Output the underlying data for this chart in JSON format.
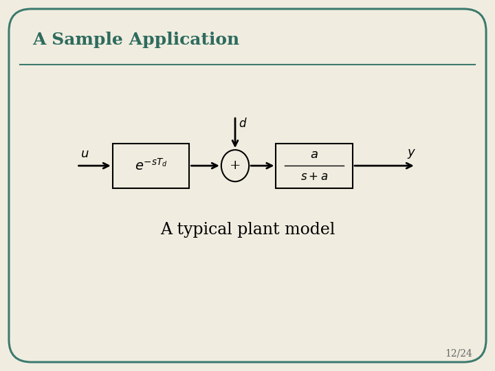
{
  "title": "A Sample Application",
  "subtitle": "A typical plant model",
  "slide_number": "12/24",
  "bg_color": "#f0ede0",
  "border_color": "#3d7a6e",
  "title_color": "#2e6b5e",
  "text_color": "#000000",
  "slide_num_color": "#666666",
  "box1_label": "$e^{-sT_d}$",
  "box2_num": "$a$",
  "box2_den": "$s+a$",
  "sum_symbol": "+",
  "input_label": "$u$",
  "output_label": "$y$",
  "disturbance_label": "$d$",
  "xlim": [
    0,
    10
  ],
  "ylim": [
    0,
    7.5
  ]
}
